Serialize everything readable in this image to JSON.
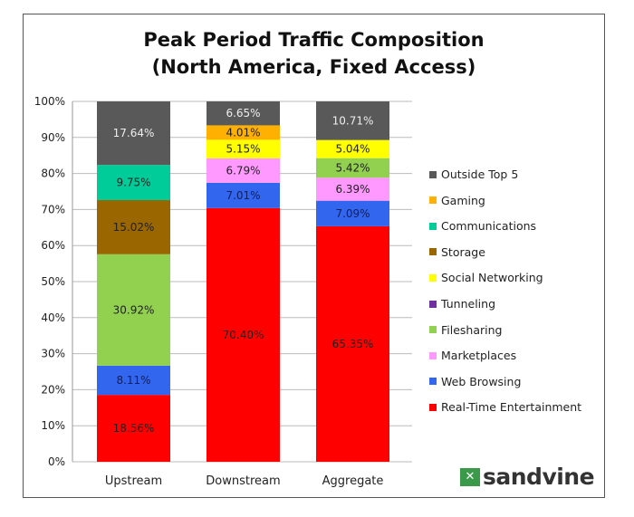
{
  "chart_data": {
    "type": "bar",
    "stacked": true,
    "title": "Peak Period Traffic Composition",
    "subtitle": "(North America, Fixed Access)",
    "categories": [
      "Upstream",
      "Downstream",
      "Aggregate"
    ],
    "ylim": [
      0,
      100
    ],
    "yticks": [
      "0%",
      "10%",
      "20%",
      "30%",
      "40%",
      "50%",
      "60%",
      "70%",
      "80%",
      "90%",
      "100%"
    ],
    "grid": true,
    "legend_position": "right",
    "series": [
      {
        "name": "Real-Time Entertainment",
        "color": "#ff0000",
        "values": [
          18.56,
          70.4,
          65.35
        ],
        "labels": [
          "18.56%",
          "70.40%",
          "65.35%"
        ]
      },
      {
        "name": "Web Browsing",
        "color": "#3366ee",
        "values": [
          8.11,
          7.01,
          7.09
        ],
        "labels": [
          "8.11%",
          "7.01%",
          "7.09%"
        ]
      },
      {
        "name": "Marketplaces",
        "color": "#ff99ff",
        "values": [
          null,
          6.79,
          6.39
        ],
        "labels": [
          "",
          "6.79%",
          "6.39%"
        ]
      },
      {
        "name": "Filesharing",
        "color": "#92d050",
        "values": [
          30.92,
          null,
          5.42
        ],
        "labels": [
          "30.92%",
          "",
          "5.42%"
        ]
      },
      {
        "name": "Tunneling",
        "color": "#7030a0",
        "values": [
          null,
          null,
          null
        ],
        "labels": [
          "",
          "",
          ""
        ]
      },
      {
        "name": "Social Networking",
        "color": "#ffff00",
        "values": [
          null,
          5.15,
          5.04
        ],
        "labels": [
          "",
          "5.15%",
          "5.04%"
        ]
      },
      {
        "name": "Storage",
        "color": "#996600",
        "values": [
          15.02,
          null,
          null
        ],
        "labels": [
          "15.02%",
          "",
          ""
        ]
      },
      {
        "name": "Communications",
        "color": "#00cc99",
        "values": [
          9.75,
          null,
          null
        ],
        "labels": [
          "9.75%",
          "",
          ""
        ]
      },
      {
        "name": "Gaming",
        "color": "#ffb000",
        "values": [
          null,
          4.01,
          null
        ],
        "labels": [
          "",
          "4.01%",
          ""
        ]
      },
      {
        "name": "Outside Top 5",
        "color": "#595959",
        "values": [
          17.64,
          6.65,
          10.71
        ],
        "labels": [
          "17.64%",
          "6.65%",
          "10.71%"
        ]
      }
    ]
  },
  "logo": {
    "text": "sandvine"
  }
}
